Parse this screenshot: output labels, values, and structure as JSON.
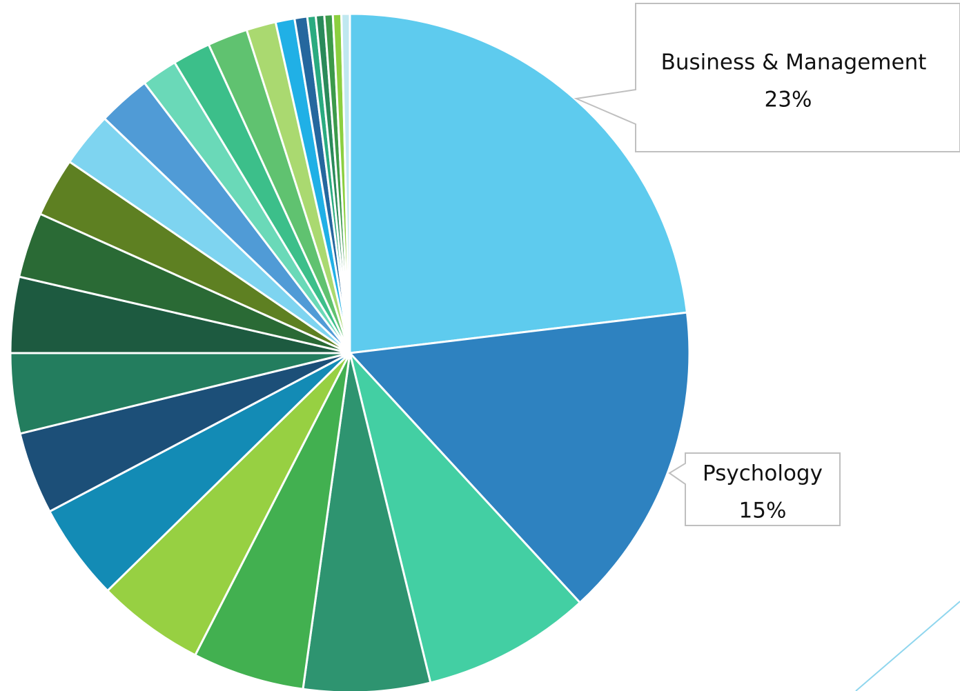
{
  "chart_data": {
    "type": "pie",
    "categories": [
      "Business & Management",
      "Psychology",
      null,
      null,
      null,
      null,
      null,
      null,
      null,
      null,
      null,
      null,
      null,
      null,
      null,
      null,
      null,
      null,
      null,
      null,
      null,
      null,
      null,
      null,
      null
    ],
    "values": [
      23,
      15,
      8,
      6,
      5.3,
      5.1,
      4.6,
      3.9,
      3.8,
      3.6,
      3.1,
      2.8,
      2.6,
      2.5,
      1.7,
      1.8,
      1.9,
      1.4,
      0.9,
      0.6,
      0.4,
      0.4,
      0.4,
      0.4,
      0.4
    ],
    "value_labels": [
      "23%",
      "15%",
      null,
      null,
      null,
      null,
      null,
      null,
      null,
      null,
      null,
      null,
      null,
      null,
      null,
      null,
      null,
      null,
      null,
      null,
      null,
      null,
      null,
      null,
      null
    ],
    "colors": [
      "#5ecbee",
      "#2e82c0",
      "#43cfa3",
      "#2e9470",
      "#42b050",
      "#97d042",
      "#138bb5",
      "#1c4f78",
      "#237d5e",
      "#1d5a40",
      "#2a6a35",
      "#5e8022",
      "#7ed4f0",
      "#509bd6",
      "#6ad9b8",
      "#3cbf8a",
      "#60c270",
      "#aad970",
      "#20b0e6",
      "#25679e",
      "#2aab80",
      "#2a8a5a",
      "#3c9a4a",
      "#8ccf40",
      "#c0e8f0"
    ]
  }
}
